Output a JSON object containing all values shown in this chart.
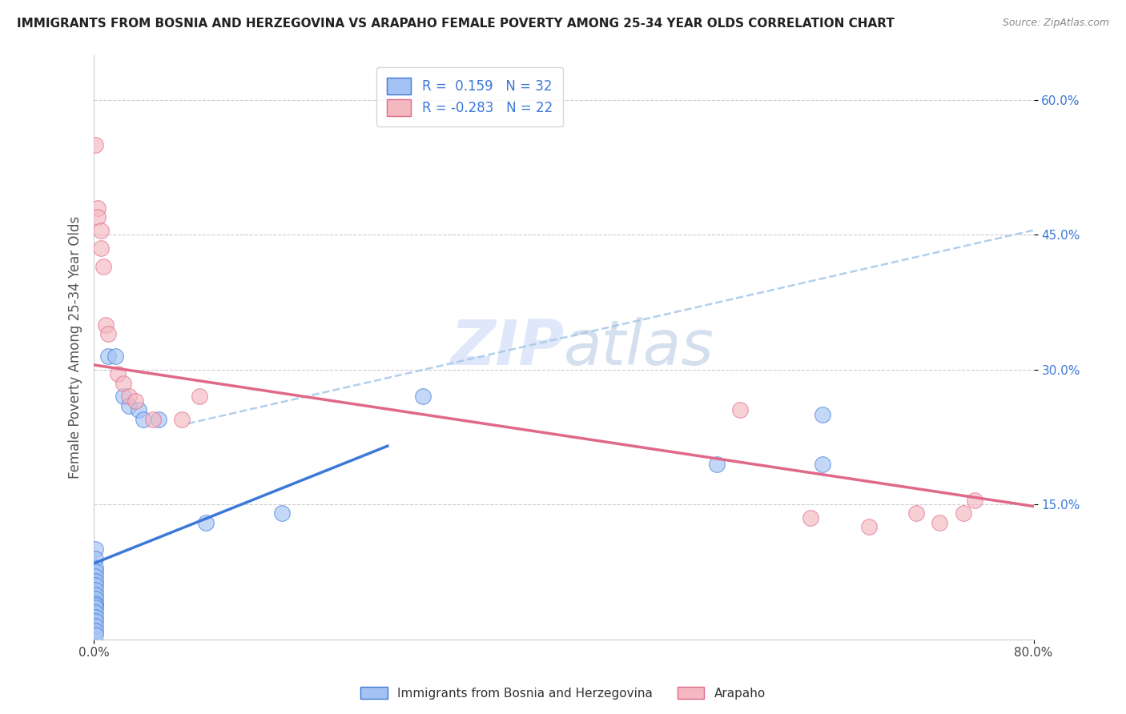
{
  "title": "IMMIGRANTS FROM BOSNIA AND HERZEGOVINA VS ARAPAHO FEMALE POVERTY AMONG 25-34 YEAR OLDS CORRELATION CHART",
  "source": "Source: ZipAtlas.com",
  "ylabel": "Female Poverty Among 25-34 Year Olds",
  "xlim": [
    0.0,
    0.8
  ],
  "ylim": [
    0.0,
    0.65
  ],
  "ytick_positions": [
    0.15,
    0.3,
    0.45,
    0.6
  ],
  "ytick_labels": [
    "15.0%",
    "30.0%",
    "45.0%",
    "60.0%"
  ],
  "color_blue": "#a4c2f4",
  "color_pink": "#f4b8c1",
  "color_blue_line": "#3c78d8",
  "color_pink_line": "#e06888",
  "color_dashed": "#9fc5e8",
  "watermark_color": "#c9daf8",
  "blue_points": [
    [
      0.001,
      0.1
    ],
    [
      0.001,
      0.09
    ],
    [
      0.001,
      0.08
    ],
    [
      0.001,
      0.075
    ],
    [
      0.001,
      0.07
    ],
    [
      0.001,
      0.065
    ],
    [
      0.001,
      0.06
    ],
    [
      0.001,
      0.055
    ],
    [
      0.001,
      0.05
    ],
    [
      0.001,
      0.045
    ],
    [
      0.001,
      0.04
    ],
    [
      0.001,
      0.038
    ],
    [
      0.001,
      0.035
    ],
    [
      0.001,
      0.03
    ],
    [
      0.001,
      0.025
    ],
    [
      0.001,
      0.02
    ],
    [
      0.001,
      0.015
    ],
    [
      0.001,
      0.01
    ],
    [
      0.001,
      0.005
    ],
    [
      0.012,
      0.315
    ],
    [
      0.018,
      0.315
    ],
    [
      0.025,
      0.27
    ],
    [
      0.03,
      0.26
    ],
    [
      0.038,
      0.255
    ],
    [
      0.042,
      0.245
    ],
    [
      0.055,
      0.245
    ],
    [
      0.095,
      0.13
    ],
    [
      0.16,
      0.14
    ],
    [
      0.28,
      0.27
    ],
    [
      0.53,
      0.195
    ],
    [
      0.62,
      0.195
    ],
    [
      0.62,
      0.25
    ]
  ],
  "pink_points": [
    [
      0.001,
      0.55
    ],
    [
      0.003,
      0.48
    ],
    [
      0.003,
      0.47
    ],
    [
      0.006,
      0.455
    ],
    [
      0.006,
      0.435
    ],
    [
      0.008,
      0.415
    ],
    [
      0.01,
      0.35
    ],
    [
      0.012,
      0.34
    ],
    [
      0.02,
      0.295
    ],
    [
      0.025,
      0.285
    ],
    [
      0.03,
      0.27
    ],
    [
      0.035,
      0.265
    ],
    [
      0.05,
      0.245
    ],
    [
      0.075,
      0.245
    ],
    [
      0.09,
      0.27
    ],
    [
      0.55,
      0.255
    ],
    [
      0.61,
      0.135
    ],
    [
      0.66,
      0.125
    ],
    [
      0.7,
      0.14
    ],
    [
      0.72,
      0.13
    ],
    [
      0.74,
      0.14
    ],
    [
      0.75,
      0.155
    ]
  ],
  "blue_trendline": [
    [
      0.001,
      0.085
    ],
    [
      0.25,
      0.215
    ]
  ],
  "pink_trendline": [
    [
      0.001,
      0.305
    ],
    [
      0.8,
      0.148
    ]
  ],
  "dashed_line": [
    [
      0.08,
      0.24
    ],
    [
      0.8,
      0.455
    ]
  ]
}
